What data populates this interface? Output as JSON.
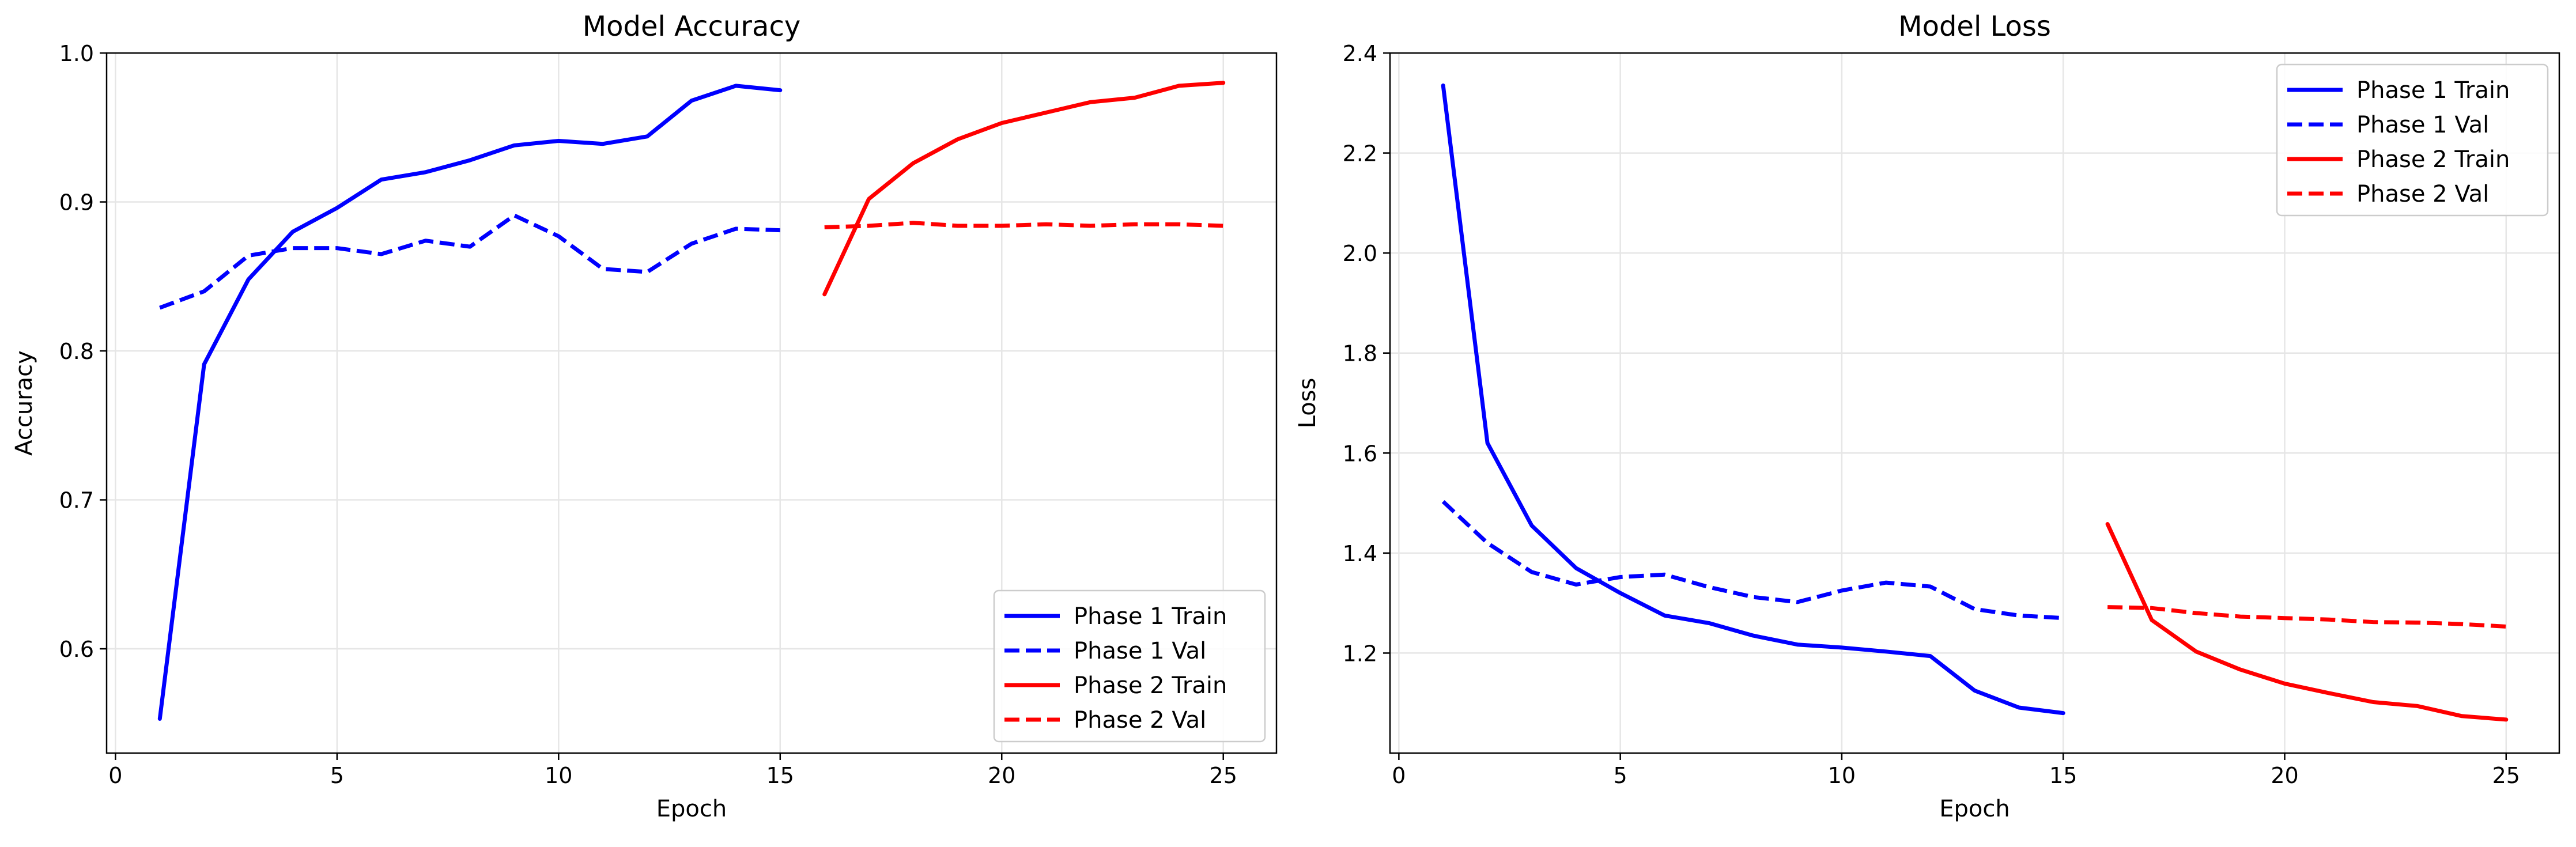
{
  "chart_data": [
    {
      "type": "line",
      "title": "Model Accuracy",
      "xlabel": "Epoch",
      "ylabel": "Accuracy",
      "xlim": [
        -0.2,
        26.2
      ],
      "ylim": [
        0.53,
        1.0
      ],
      "xticks": [
        "0",
        "5",
        "10",
        "15",
        "20",
        "25"
      ],
      "yticks": [
        "0.6",
        "0.7",
        "0.8",
        "0.9",
        "1.0"
      ],
      "grid": true,
      "legend_position": "lower-right",
      "series": [
        {
          "name": "Phase 1 Train",
          "color": "#0000ff",
          "style": "solid",
          "x": [
            1,
            2,
            3,
            4,
            5,
            6,
            7,
            8,
            9,
            10,
            11,
            12,
            13,
            14,
            15
          ],
          "y": [
            0.553,
            0.791,
            0.848,
            0.88,
            0.896,
            0.915,
            0.92,
            0.928,
            0.938,
            0.941,
            0.939,
            0.944,
            0.968,
            0.978,
            0.975
          ]
        },
        {
          "name": "Phase 1 Val",
          "color": "#0000ff",
          "style": "dashed",
          "x": [
            1,
            2,
            3,
            4,
            5,
            6,
            7,
            8,
            9,
            10,
            11,
            12,
            13,
            14,
            15
          ],
          "y": [
            0.829,
            0.84,
            0.864,
            0.869,
            0.869,
            0.865,
            0.874,
            0.87,
            0.891,
            0.877,
            0.855,
            0.853,
            0.872,
            0.882,
            0.881
          ]
        },
        {
          "name": "Phase 2 Train",
          "color": "#ff0000",
          "style": "solid",
          "x": [
            16,
            17,
            18,
            19,
            20,
            21,
            22,
            23,
            24,
            25
          ],
          "y": [
            0.838,
            0.902,
            0.926,
            0.942,
            0.953,
            0.96,
            0.967,
            0.97,
            0.978,
            0.98
          ]
        },
        {
          "name": "Phase 2 Val",
          "color": "#ff0000",
          "style": "dashed",
          "x": [
            16,
            17,
            18,
            19,
            20,
            21,
            22,
            23,
            24,
            25
          ],
          "y": [
            0.883,
            0.884,
            0.886,
            0.884,
            0.884,
            0.885,
            0.884,
            0.885,
            0.885,
            0.884
          ]
        }
      ]
    },
    {
      "type": "line",
      "title": "Model Loss",
      "xlabel": "Epoch",
      "ylabel": "Loss",
      "xlim": [
        -0.2,
        26.2
      ],
      "ylim": [
        1.0,
        2.4
      ],
      "xticks": [
        "0",
        "5",
        "10",
        "15",
        "20",
        "25"
      ],
      "yticks": [
        "1.2",
        "1.4",
        "1.6",
        "1.8",
        "2.0",
        "2.2",
        "2.4"
      ],
      "grid": true,
      "legend_position": "upper-right",
      "series": [
        {
          "name": "Phase 1 Train",
          "color": "#0000ff",
          "style": "solid",
          "x": [
            1,
            2,
            3,
            4,
            5,
            6,
            7,
            8,
            9,
            10,
            11,
            12,
            13,
            14,
            15
          ],
          "y": [
            2.335,
            1.62,
            1.455,
            1.37,
            1.32,
            1.275,
            1.26,
            1.235,
            1.217,
            1.211,
            1.203,
            1.194,
            1.125,
            1.091,
            1.08
          ]
        },
        {
          "name": "Phase 1 Val",
          "color": "#0000ff",
          "style": "dashed",
          "x": [
            1,
            2,
            3,
            4,
            5,
            6,
            7,
            8,
            9,
            10,
            11,
            12,
            13,
            14,
            15
          ],
          "y": [
            1.503,
            1.42,
            1.362,
            1.337,
            1.352,
            1.357,
            1.332,
            1.312,
            1.302,
            1.325,
            1.341,
            1.333,
            1.288,
            1.275,
            1.27
          ]
        },
        {
          "name": "Phase 2 Train",
          "color": "#ff0000",
          "style": "solid",
          "x": [
            16,
            17,
            18,
            19,
            20,
            21,
            22,
            23,
            24,
            25
          ],
          "y": [
            1.458,
            1.266,
            1.203,
            1.167,
            1.139,
            1.12,
            1.102,
            1.094,
            1.074,
            1.067
          ]
        },
        {
          "name": "Phase 2 Val",
          "color": "#ff0000",
          "style": "dashed",
          "x": [
            16,
            17,
            18,
            19,
            20,
            21,
            22,
            23,
            24,
            25
          ],
          "y": [
            1.292,
            1.29,
            1.28,
            1.273,
            1.27,
            1.267,
            1.262,
            1.261,
            1.258,
            1.253
          ]
        }
      ]
    }
  ]
}
